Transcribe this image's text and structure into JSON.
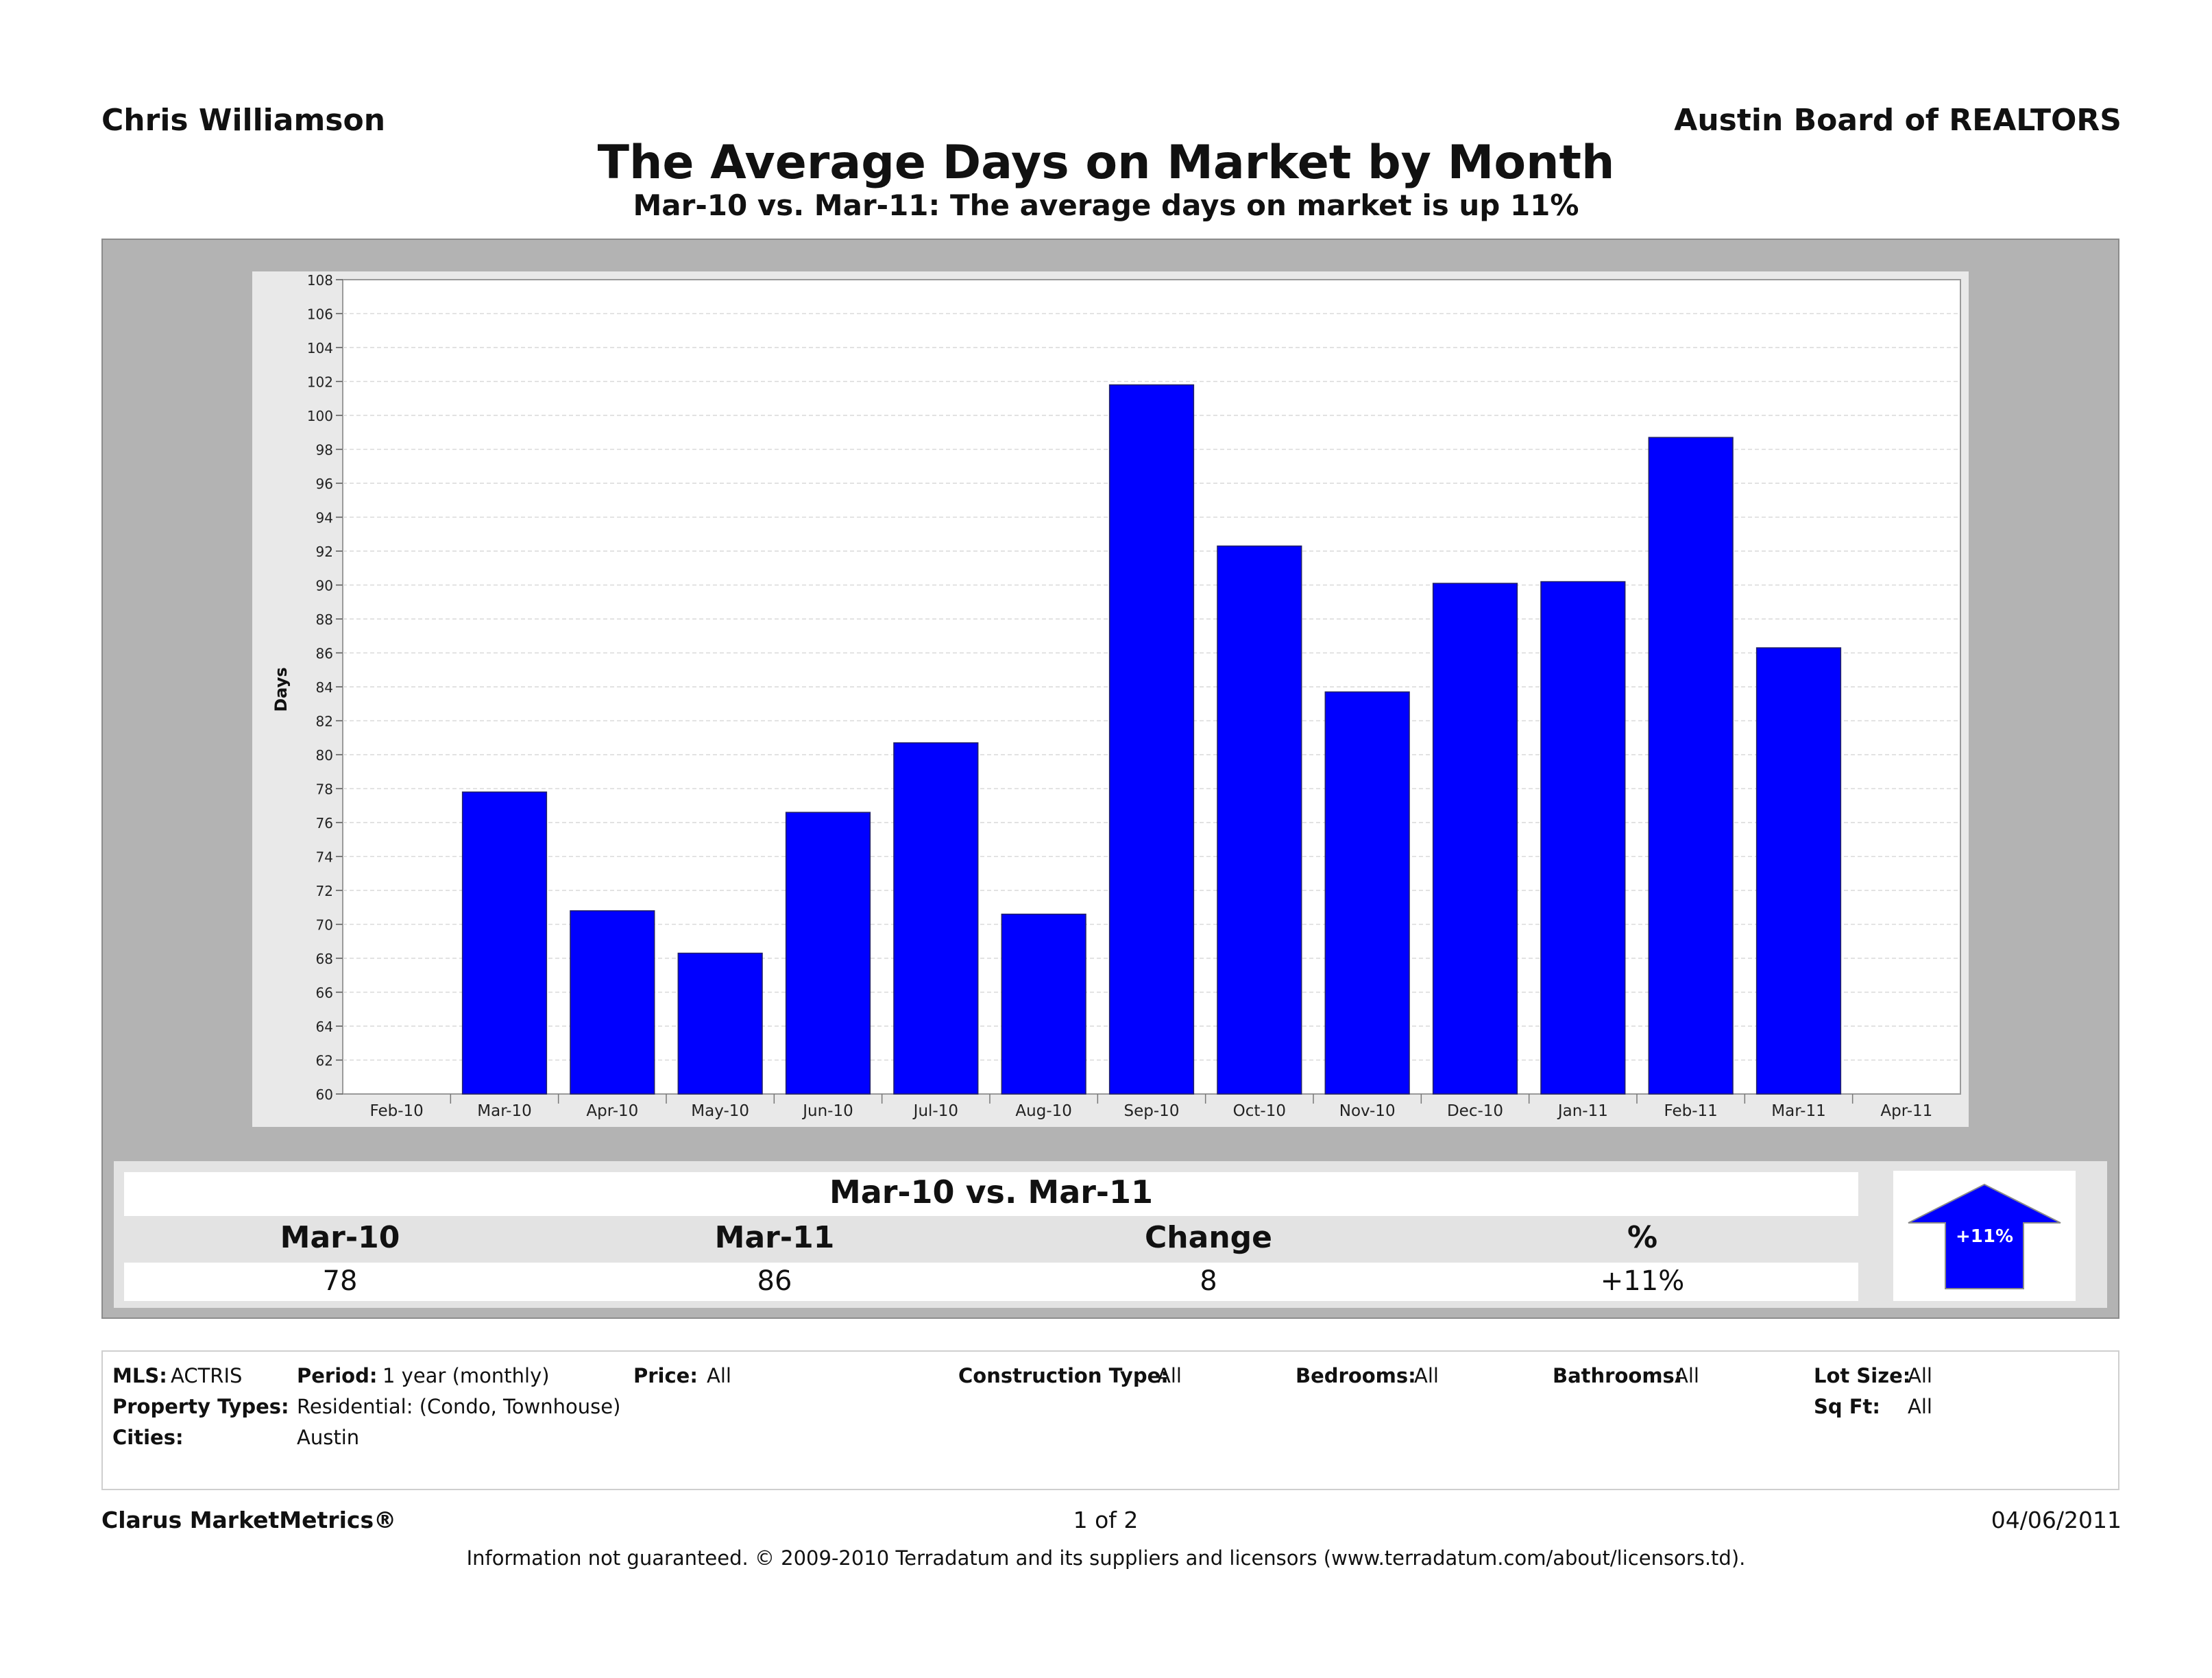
{
  "header": {
    "agent": "Chris Williamson",
    "board": "Austin Board of REALTORS",
    "title": "The Average Days on Market by Month",
    "subtitle": "Mar-10 vs. Mar-11:  The average days on market is up 11%"
  },
  "chart_data": {
    "type": "bar",
    "ylabel": "Days",
    "xlabel": "",
    "ylim": [
      60,
      108
    ],
    "yticks": [
      60,
      62,
      64,
      66,
      68,
      70,
      72,
      74,
      76,
      78,
      80,
      82,
      84,
      86,
      88,
      90,
      92,
      94,
      96,
      98,
      100,
      102,
      104,
      106,
      108
    ],
    "axis_categories": [
      "Feb-10",
      "Mar-10",
      "Apr-10",
      "May-10",
      "Jun-10",
      "Jul-10",
      "Aug-10",
      "Sep-10",
      "Oct-10",
      "Nov-10",
      "Dec-10",
      "Jan-11",
      "Feb-11",
      "Mar-11",
      "Apr-11"
    ],
    "categories": [
      "Mar-10",
      "Apr-10",
      "May-10",
      "Jun-10",
      "Jul-10",
      "Aug-10",
      "Sep-10",
      "Oct-10",
      "Nov-10",
      "Dec-10",
      "Jan-11",
      "Feb-11",
      "Mar-11"
    ],
    "values": [
      77.8,
      70.8,
      68.3,
      76.6,
      80.7,
      70.6,
      101.8,
      92.3,
      83.7,
      90.1,
      90.2,
      98.7,
      86.3
    ],
    "bar_color": "#0000ff",
    "grid": true
  },
  "summary": {
    "heading": "Mar-10 vs. Mar-11",
    "columns": [
      {
        "label": "Mar-10",
        "value": "78"
      },
      {
        "label": "Mar-11",
        "value": "86"
      },
      {
        "label": "Change",
        "value": "8"
      },
      {
        "label": "%",
        "value": "+11%"
      }
    ],
    "badge": "+11%"
  },
  "filters": {
    "mls_label": "MLS:",
    "mls_value": "ACTRIS",
    "period_label": "Period:",
    "period_value": "1 year (monthly)",
    "price_label": "Price:",
    "price_value": "All",
    "construction_label": "Construction Type:",
    "construction_value": "All",
    "bedrooms_label": "Bedrooms:",
    "bedrooms_value": "All",
    "bathrooms_label": "Bathrooms:",
    "bathrooms_value": "All",
    "lot_label": "Lot Size:",
    "lot_value": "All",
    "types_label": "Property Types:",
    "types_value": "Residential: (Condo, Townhouse)",
    "sqft_label": "Sq Ft:",
    "sqft_value": "All",
    "cities_label": "Cities:",
    "cities_value": "Austin"
  },
  "footer": {
    "brand": "Clarus MarketMetrics®",
    "page": "1 of 2",
    "date": "04/06/2011",
    "disclaimer": "Information not guaranteed.  © 2009-2010 Terradatum and its suppliers and licensors (www.terradatum.com/about/licensors.td)."
  }
}
